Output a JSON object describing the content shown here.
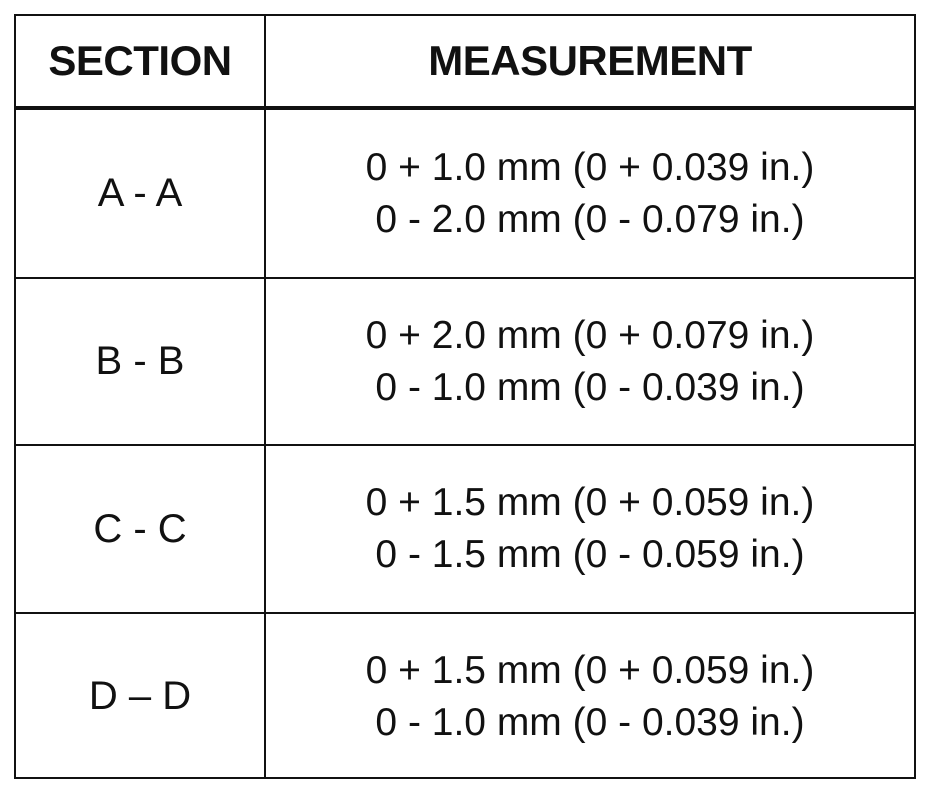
{
  "table": {
    "header": [
      "SECTION",
      "MEASUREMENT"
    ],
    "rows": [
      {
        "section": "A - A",
        "measurement": [
          "0 + 1.0 mm (0 + 0.039 in.)",
          "0 - 2.0 mm (0 - 0.079 in.)"
        ]
      },
      {
        "section": "B - B",
        "measurement": [
          "0 + 2.0 mm (0 + 0.079 in.)",
          "0 - 1.0 mm (0 - 0.039 in.)"
        ]
      },
      {
        "section": "C - C",
        "measurement": [
          "0 + 1.5 mm (0 + 0.059 in.)",
          "0 - 1.5 mm (0 - 0.059 in.)"
        ]
      },
      {
        "section": "D – D",
        "measurement": [
          "0 + 1.5 mm (0 + 0.059 in.)",
          "0 - 1.0 mm (0 - 0.039 in.)"
        ]
      }
    ]
  }
}
